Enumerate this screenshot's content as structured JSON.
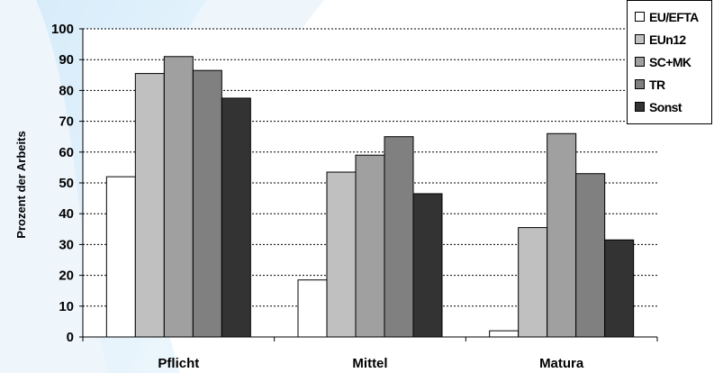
{
  "chart_data": {
    "type": "bar",
    "categories": [
      "Pflicht",
      "Mittel",
      "Matura"
    ],
    "series": [
      {
        "name": "EU/EFTA",
        "values": [
          52,
          18.5,
          2
        ],
        "color": "#ffffff"
      },
      {
        "name": "EUn12",
        "values": [
          85.5,
          53.5,
          35.5
        ],
        "color": "#c0c0c0"
      },
      {
        "name": "SC+MK",
        "values": [
          91,
          59,
          66
        ],
        "color": "#a0a0a0"
      },
      {
        "name": "TR",
        "values": [
          86.5,
          65,
          53
        ],
        "color": "#808080"
      },
      {
        "name": "Sonst",
        "values": [
          77.5,
          46.5,
          31.5
        ],
        "color": "#333333"
      }
    ],
    "xlabel": "",
    "ylabel": "Prozent der Arbeits",
    "ylim": [
      0,
      100
    ],
    "yticks": [
      0,
      10,
      20,
      30,
      40,
      50,
      60,
      70,
      80,
      90,
      100
    ],
    "grid": true,
    "legend_position": "top-right"
  }
}
